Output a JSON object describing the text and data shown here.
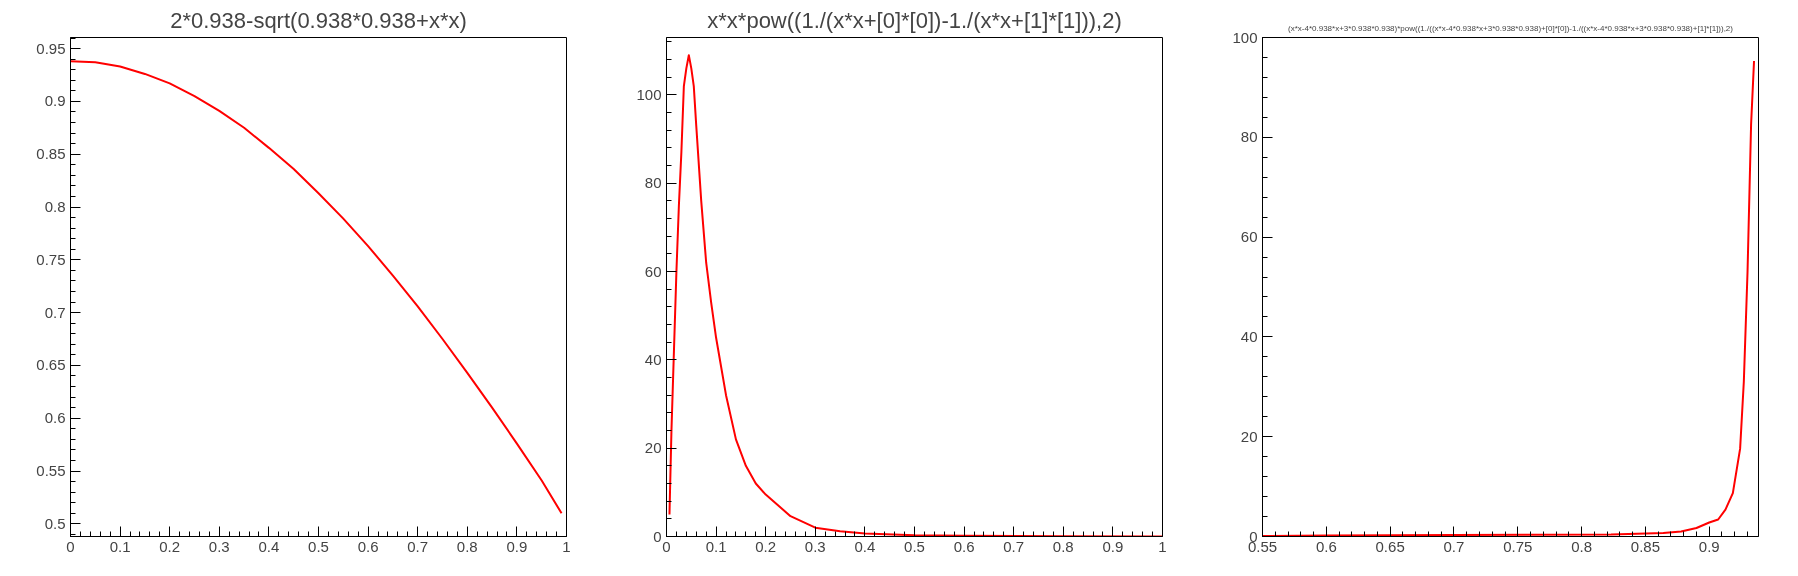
{
  "chart_data": [
    {
      "type": "line",
      "title": "2*0.938-sqrt(0.938*0.938+x*x)",
      "color": "#ff0000",
      "grid": false,
      "x": [
        0,
        0.05,
        0.1,
        0.15,
        0.2,
        0.25,
        0.3,
        0.35,
        0.4,
        0.45,
        0.5,
        0.55,
        0.6,
        0.65,
        0.7,
        0.75,
        0.8,
        0.85,
        0.9,
        0.95,
        0.99
      ],
      "values": [
        0.938,
        0.937,
        0.933,
        0.926,
        0.917,
        0.905,
        0.891,
        0.875,
        0.856,
        0.836,
        0.813,
        0.789,
        0.763,
        0.735,
        0.706,
        0.675,
        0.643,
        0.61,
        0.576,
        0.541,
        0.51
      ],
      "xlim": [
        0,
        1
      ],
      "ylim": [
        0.488,
        0.9605
      ],
      "xticks": [
        0,
        0.1,
        0.2,
        0.3,
        0.4,
        0.5,
        0.6,
        0.7,
        0.8,
        0.9,
        1
      ],
      "yticks": [
        0.5,
        0.55,
        0.6,
        0.65,
        0.7,
        0.75,
        0.8,
        0.85,
        0.9,
        0.95
      ]
    },
    {
      "type": "line",
      "title": "x*x*pow((1./(x*x+[0]*[0])-1./(x*x+[1]*[1])),2)",
      "color": "#ff0000",
      "grid": false,
      "x": [
        0.006,
        0.01,
        0.015,
        0.02,
        0.025,
        0.03,
        0.035,
        0.04,
        0.045,
        0.05,
        0.055,
        0.06,
        0.07,
        0.08,
        0.09,
        0.1,
        0.12,
        0.14,
        0.16,
        0.18,
        0.2,
        0.25,
        0.3,
        0.35,
        0.4,
        0.5,
        0.6,
        0.8,
        1.0
      ],
      "values": [
        5,
        24,
        42,
        60,
        75,
        87,
        102,
        106,
        109,
        106,
        102,
        93,
        76,
        62,
        53,
        45,
        32,
        22,
        16,
        12,
        9.5,
        4.6,
        2,
        1.2,
        0.7,
        0.3,
        0.15,
        0.05,
        0.02
      ],
      "xlim": [
        0,
        1
      ],
      "ylim": [
        0,
        113
      ],
      "xticks": [
        0,
        0.1,
        0.2,
        0.3,
        0.4,
        0.5,
        0.6,
        0.7,
        0.8,
        0.9,
        1
      ],
      "yticks": [
        0,
        20,
        40,
        60,
        80,
        100
      ]
    },
    {
      "type": "line",
      "title": "(x*x-4*0.938*x+3*0.938*0.938)*pow((1./((x*x-4*0.938*x+3*0.938*0.938)+[0]*[0])-1./((x*x-4*0.938*x+3*0.938*0.938)+[1]*[1])),2)",
      "color": "#ff0000",
      "grid": false,
      "x": [
        0.55,
        0.6,
        0.7,
        0.823,
        0.864,
        0.878,
        0.89,
        0.9,
        0.907,
        0.9127,
        0.9185,
        0.9242,
        0.9271,
        0.93,
        0.9328,
        0.9351
      ],
      "values": [
        0.1,
        0.2,
        0.3,
        0.4,
        0.7,
        1.0,
        1.7,
        2.8,
        3.4,
        5.4,
        8.7,
        17.6,
        31,
        53,
        82.6,
        95.3
      ],
      "xlim": [
        0.55,
        0.9386
      ],
      "ylim": [
        0,
        100
      ],
      "xticks": [
        0.55,
        0.6,
        0.65,
        0.7,
        0.75,
        0.8,
        0.85,
        0.9
      ],
      "yticks": [
        0,
        20,
        40,
        60,
        80,
        100
      ]
    }
  ]
}
